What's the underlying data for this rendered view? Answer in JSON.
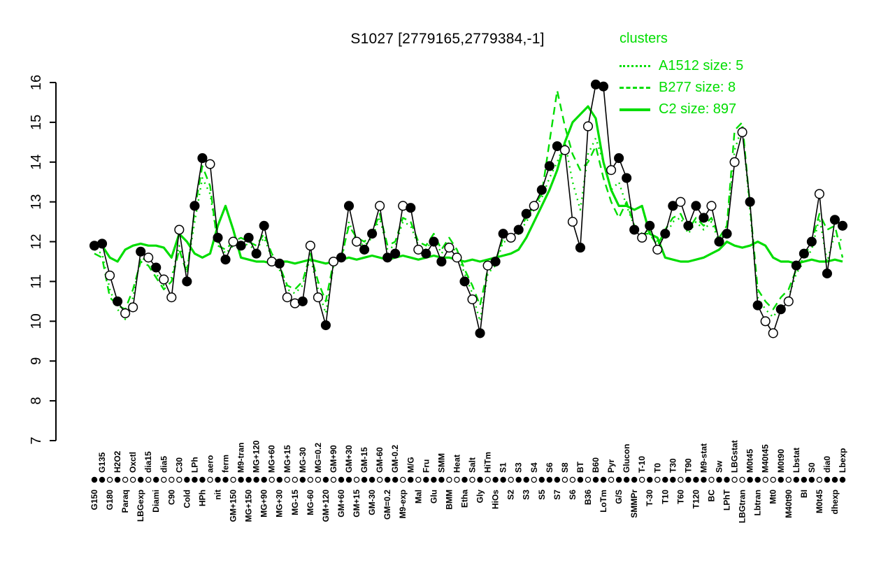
{
  "title": "S1027 [2779165,2779384,-1]",
  "chart_data": {
    "type": "line",
    "title": "S1027 [2779165,2779384,-1]",
    "ylim": [
      7,
      16
    ],
    "yticks": [
      7,
      8,
      9,
      10,
      11,
      12,
      13,
      14,
      15,
      16
    ],
    "grid": false,
    "colors": {
      "profile": "#000000",
      "cluster": "#00dd00"
    },
    "legend": {
      "title": "clusters",
      "position": "top-right",
      "color": "#00dd00",
      "entries": [
        {
          "name": "A1512",
          "label": "A1512 size: 5",
          "style": "dotted",
          "color": "#00dd00"
        },
        {
          "name": "B277",
          "label": "B277 size: 8",
          "style": "dashed",
          "color": "#00dd00"
        },
        {
          "name": "C2",
          "label": "C2 size: 897",
          "style": "solid",
          "color": "#00dd00"
        }
      ]
    },
    "categories": [
      "G150",
      "G135",
      "G180",
      "H2O2",
      "Paraq",
      "Oxctl",
      "LBGexp",
      "dia15",
      "Diami",
      "dia5",
      "C90",
      "C30",
      "Cold",
      "LPh",
      "HPh",
      "aero",
      "nit",
      "ferm",
      "GM+150",
      "M9-tran",
      "MG+150",
      "MG+120",
      "MG+90",
      "MG+60",
      "MG+30",
      "MG+15",
      "MG-15",
      "MG-30",
      "MG-60",
      "MG=0.2",
      "GM+120",
      "GM+90",
      "GM+60",
      "GM+30",
      "GM+15",
      "GM-15",
      "GM-30",
      "GM-60",
      "GM=0.2",
      "GM-0.2",
      "M9-exp",
      "M/G",
      "Mal",
      "Fru",
      "Glu",
      "SMM",
      "BMM",
      "Heat",
      "Etha",
      "Salt",
      "Gly",
      "HiTm",
      "HiOs",
      "S1",
      "S2",
      "S3",
      "S3",
      "S4",
      "S5",
      "S6",
      "S7",
      "S8",
      "S6",
      "BT",
      "B36",
      "B60",
      "LoTm",
      "Pyr",
      "G/S",
      "Glucon",
      "SMMPr",
      "T-10",
      "T-30",
      "T0",
      "T10",
      "T30",
      "T60",
      "T90",
      "T120",
      "M9-stat",
      "BC",
      "Sw",
      "LPhT",
      "LBGstat",
      "LBGtran",
      "M0t45",
      "Lbtran",
      "M40t45",
      "Mt0",
      "M0t90",
      "M40t90",
      "Lbstat",
      "BI",
      "S0",
      "M0t45",
      "dia0",
      "dhexp",
      "Lbexp"
    ],
    "point_markers": [
      "filled",
      "filled",
      "open",
      "filled",
      "open",
      "open",
      "filled",
      "open",
      "filled",
      "open",
      "open",
      "open",
      "filled",
      "filled",
      "filled",
      "open",
      "filled",
      "filled",
      "open",
      "filled",
      "filled",
      "filled",
      "filled",
      "open",
      "filled",
      "open",
      "open",
      "filled",
      "open",
      "open",
      "filled",
      "open",
      "filled",
      "filled",
      "open",
      "filled",
      "filled",
      "open",
      "filled",
      "filled",
      "open",
      "filled",
      "open",
      "filled",
      "filled",
      "filled",
      "open",
      "open",
      "filled",
      "open",
      "filled",
      "open",
      "filled",
      "filled",
      "open",
      "filled",
      "filled",
      "open",
      "filled",
      "filled",
      "filled",
      "open",
      "open",
      "filled",
      "open",
      "filled",
      "filled",
      "open",
      "filled",
      "filled",
      "filled",
      "open",
      "filled",
      "open",
      "filled",
      "filled",
      "open",
      "filled",
      "filled",
      "filled",
      "open",
      "filled",
      "filled",
      "open",
      "open",
      "filled",
      "filled",
      "open",
      "open",
      "filled",
      "open",
      "filled",
      "filled",
      "filled",
      "open",
      "filled",
      "filled",
      "filled"
    ],
    "series": [
      {
        "name": "S1027 profile",
        "color": "#000000",
        "style": "solid-markers",
        "values": [
          11.9,
          11.95,
          11.15,
          10.5,
          10.2,
          10.35,
          11.75,
          11.6,
          11.35,
          11.05,
          10.6,
          12.3,
          11.0,
          12.9,
          14.1,
          13.95,
          12.1,
          11.55,
          12.0,
          11.9,
          12.1,
          11.7,
          12.4,
          11.5,
          11.45,
          10.6,
          10.45,
          10.5,
          11.9,
          10.6,
          9.9,
          11.5,
          11.6,
          12.9,
          12.0,
          11.8,
          12.2,
          12.9,
          11.6,
          11.7,
          12.9,
          12.85,
          11.8,
          11.7,
          12.0,
          11.5,
          11.85,
          11.6,
          11.0,
          10.55,
          9.7,
          11.4,
          11.5,
          12.2,
          12.1,
          12.3,
          12.7,
          12.9,
          13.3,
          13.9,
          14.4,
          14.3,
          12.5,
          11.85,
          14.9,
          15.95,
          15.9,
          13.8,
          14.1,
          13.6,
          12.3,
          12.1,
          12.4,
          11.8,
          12.2,
          12.9,
          13.0,
          12.4,
          12.9,
          12.6,
          12.9,
          12.0,
          12.2,
          14.0,
          14.75,
          13.0,
          10.4,
          10.0,
          9.7,
          10.3,
          10.5,
          11.4,
          11.7,
          12.0,
          13.2,
          11.2,
          12.55,
          12.4
        ]
      },
      {
        "name": "A1512",
        "color": "#00dd00",
        "style": "dotted",
        "values": [
          11.8,
          11.7,
          10.8,
          10.3,
          10.05,
          10.6,
          11.6,
          11.5,
          11.2,
          10.9,
          11.1,
          11.9,
          11.3,
          12.5,
          13.6,
          13.2,
          12.0,
          11.7,
          11.9,
          12.0,
          11.9,
          11.8,
          12.1,
          11.6,
          11.3,
          10.8,
          10.7,
          10.9,
          11.6,
          10.8,
          10.2,
          11.4,
          11.5,
          12.5,
          12.0,
          11.9,
          12.1,
          12.6,
          11.8,
          11.9,
          12.5,
          12.4,
          11.9,
          11.8,
          12.1,
          11.7,
          12.0,
          11.7,
          11.2,
          10.7,
          10.0,
          11.2,
          11.4,
          12.0,
          12.0,
          12.2,
          12.5,
          12.8,
          13.1,
          13.6,
          14.0,
          14.5,
          13.5,
          12.8,
          14.2,
          14.6,
          14.0,
          13.3,
          13.5,
          12.9,
          12.4,
          12.2,
          12.3,
          12.0,
          12.1,
          12.5,
          12.6,
          12.2,
          12.5,
          12.3,
          12.5,
          12.0,
          12.3,
          14.3,
          14.9,
          12.8,
          10.6,
          10.3,
          10.1,
          10.4,
          10.6,
          11.2,
          11.5,
          11.8,
          12.6,
          11.5,
          12.2,
          12.0
        ]
      },
      {
        "name": "B277",
        "color": "#00dd00",
        "style": "dashed",
        "values": [
          11.7,
          11.6,
          10.6,
          10.4,
          10.3,
          10.8,
          11.5,
          11.4,
          11.1,
          10.8,
          11.0,
          11.8,
          11.2,
          12.8,
          13.9,
          13.4,
          11.9,
          11.8,
          12.0,
          12.1,
          12.0,
          11.9,
          12.2,
          11.7,
          11.4,
          10.9,
          10.8,
          11.0,
          11.7,
          11.0,
          10.5,
          11.5,
          11.6,
          12.4,
          12.1,
          12.0,
          12.2,
          12.7,
          11.9,
          12.0,
          12.6,
          12.5,
          12.0,
          11.9,
          12.2,
          11.8,
          12.1,
          11.8,
          11.3,
          10.9,
          10.4,
          11.3,
          11.5,
          12.1,
          12.1,
          12.3,
          12.6,
          12.9,
          13.2,
          14.5,
          15.8,
          14.9,
          14.2,
          13.8,
          14.0,
          14.4,
          13.6,
          13.0,
          12.6,
          13.0,
          12.4,
          12.2,
          12.2,
          11.9,
          12.3,
          12.6,
          12.7,
          12.3,
          12.6,
          12.4,
          12.6,
          12.1,
          12.4,
          14.8,
          15.0,
          12.9,
          10.8,
          10.5,
          10.3,
          10.6,
          10.8,
          11.3,
          11.6,
          12.0,
          12.7,
          12.3,
          12.4,
          11.6
        ]
      },
      {
        "name": "C2",
        "color": "#00dd00",
        "style": "solid",
        "values": [
          11.9,
          11.9,
          11.6,
          11.5,
          11.8,
          11.9,
          11.95,
          11.9,
          11.9,
          11.85,
          11.6,
          12.2,
          12.0,
          11.7,
          11.6,
          11.7,
          12.4,
          12.9,
          12.3,
          11.6,
          11.55,
          11.5,
          11.5,
          11.45,
          11.5,
          11.5,
          11.45,
          11.5,
          11.55,
          11.5,
          11.45,
          11.5,
          11.55,
          11.6,
          11.55,
          11.6,
          11.65,
          11.6,
          11.55,
          11.6,
          11.65,
          11.6,
          11.55,
          11.6,
          11.65,
          11.6,
          11.6,
          11.55,
          11.5,
          11.55,
          11.5,
          11.55,
          11.6,
          11.65,
          11.7,
          11.8,
          12.1,
          12.5,
          12.9,
          13.3,
          13.8,
          14.5,
          15.0,
          15.2,
          15.4,
          15.1,
          14.0,
          13.3,
          12.9,
          12.9,
          12.8,
          12.9,
          12.2,
          12.1,
          11.6,
          11.55,
          11.5,
          11.5,
          11.55,
          11.6,
          11.7,
          11.8,
          12.0,
          11.9,
          11.85,
          11.9,
          12.0,
          11.9,
          11.6,
          11.5,
          11.5,
          11.45,
          11.5,
          11.55,
          11.5,
          11.5,
          11.55,
          11.5
        ]
      }
    ]
  }
}
